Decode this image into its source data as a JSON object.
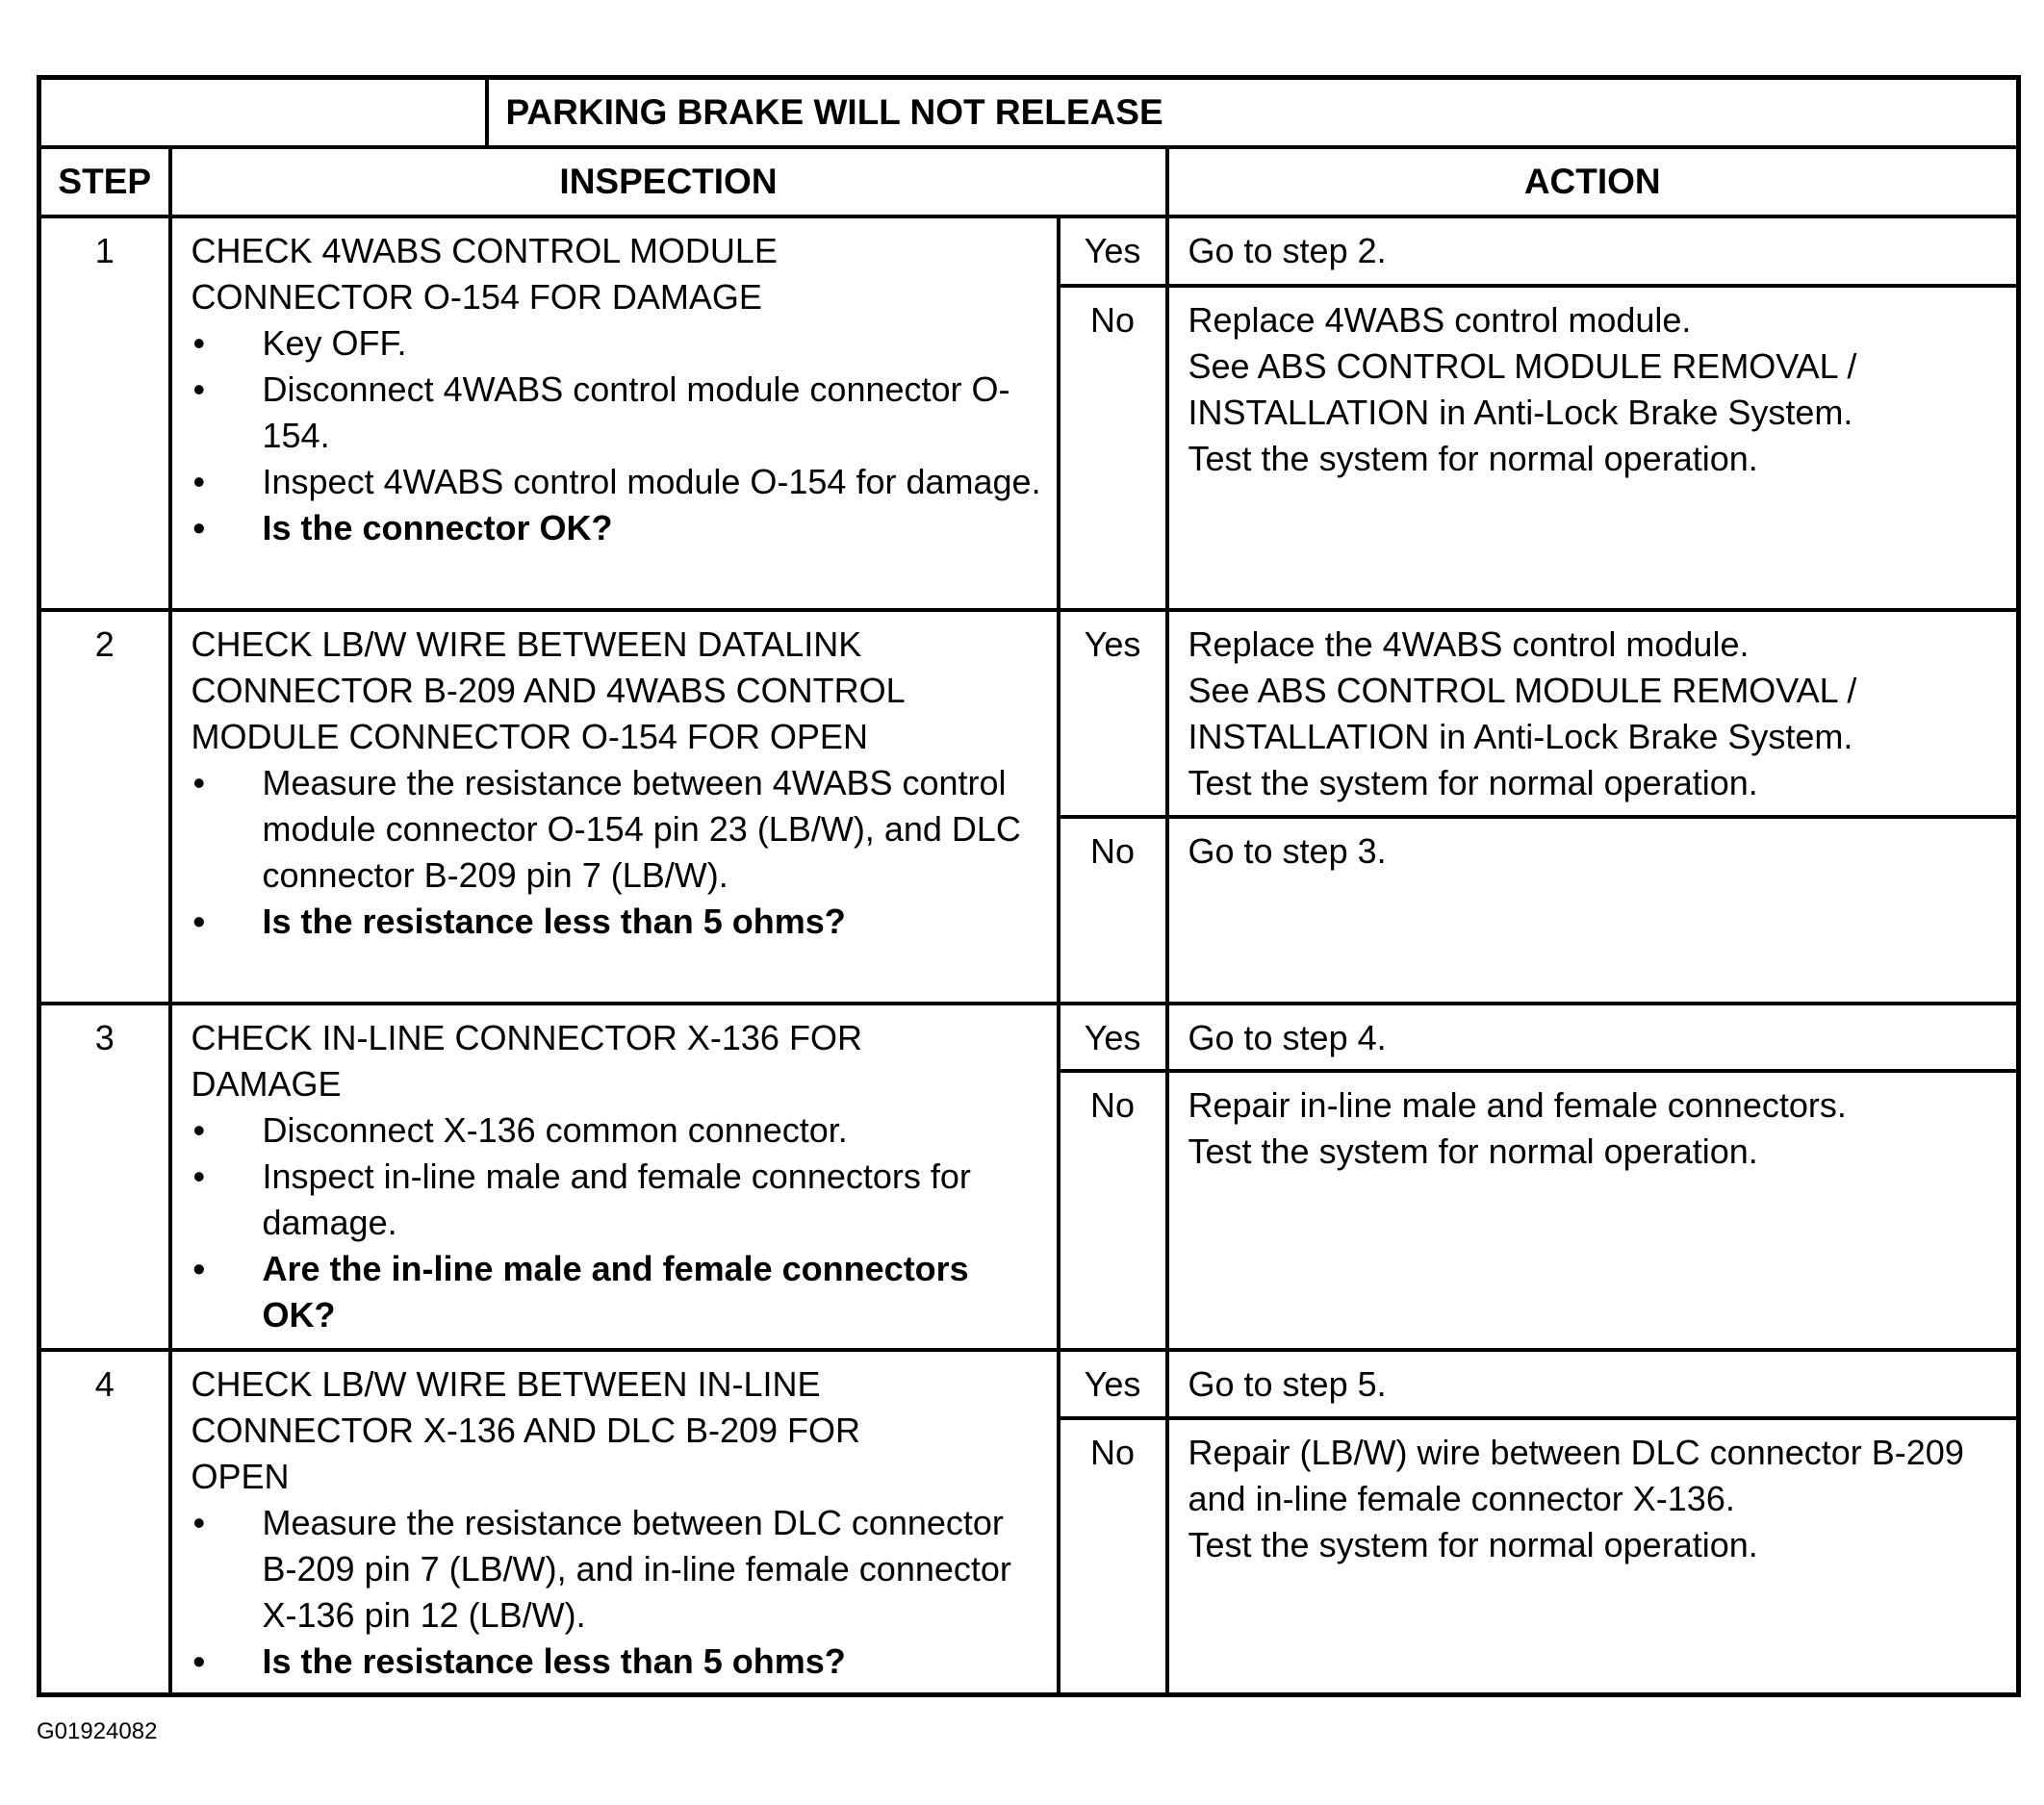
{
  "title": "PARKING BRAKE WILL NOT RELEASE",
  "headers": {
    "step": "STEP",
    "inspection": "INSPECTION",
    "action": "ACTION"
  },
  "steps": [
    {
      "number": "1",
      "heading": [
        "CHECK 4WABS CONTROL MODULE",
        "CONNECTOR O-154 FOR DAMAGE"
      ],
      "bullets": [
        {
          "text": "Key OFF.",
          "bold": false
        },
        {
          "text": "Disconnect 4WABS control module connector O-154.",
          "bold": false
        },
        {
          "text": "Inspect 4WABS control module O-154 for damage.",
          "bold": false
        },
        {
          "text": "Is the connector OK?",
          "bold": true
        }
      ],
      "yes": {
        "label": "Yes",
        "action": [
          "Go to step 2."
        ]
      },
      "no": {
        "label": "No",
        "action": [
          "Replace 4WABS control module.",
          "See ABS CONTROL MODULE REMOVAL / INSTALLATION in Anti-Lock Brake System.",
          "Test the system for normal operation."
        ]
      }
    },
    {
      "number": "2",
      "heading": [
        "CHECK LB/W WIRE BETWEEN DATALINK",
        "CONNECTOR B-209 AND 4WABS CONTROL",
        "MODULE CONNECTOR O-154 FOR OPEN"
      ],
      "bullets": [
        {
          "text": "Measure the resistance between 4WABS control module connector O-154 pin 23 (LB/W), and DLC connector B-209 pin 7 (LB/W).",
          "bold": false
        },
        {
          "text": "Is the resistance less than 5 ohms?",
          "bold": true
        }
      ],
      "yes": {
        "label": "Yes",
        "action": [
          "Replace the 4WABS control module.",
          "See ABS CONTROL MODULE REMOVAL / INSTALLATION in Anti-Lock Brake System.",
          "Test the system for normal operation."
        ]
      },
      "no": {
        "label": "No",
        "action": [
          "Go to step 3."
        ]
      }
    },
    {
      "number": "3",
      "heading": [
        "CHECK IN-LINE CONNECTOR X-136 FOR",
        "DAMAGE"
      ],
      "bullets": [
        {
          "text": "Disconnect X-136 common connector.",
          "bold": false
        },
        {
          "text": "Inspect in-line male and female connectors for damage.",
          "bold": false
        },
        {
          "text": "Are the in-line male and female connectors OK?",
          "bold": true
        }
      ],
      "yes": {
        "label": "Yes",
        "action": [
          "Go to step 4."
        ]
      },
      "no": {
        "label": "No",
        "action": [
          "Repair in-line male and female connectors.",
          "Test the system for normal operation."
        ]
      }
    },
    {
      "number": "4",
      "heading": [
        "CHECK LB/W WIRE BETWEEN IN-LINE",
        "CONNECTOR X-136 AND DLC B-209 FOR",
        "OPEN"
      ],
      "bullets": [
        {
          "text": "Measure the resistance between DLC connector B-209 pin 7 (LB/W), and in-line female connector X-136 pin 12 (LB/W).",
          "bold": false
        },
        {
          "text": "Is the resistance less than 5 ohms?",
          "bold": true
        }
      ],
      "yes": {
        "label": "Yes",
        "action": [
          "Go to step 5."
        ]
      },
      "no": {
        "label": "No",
        "action": [
          "Repair (LB/W) wire between DLC connector B-209 and in-line female connector X-136.",
          "Test the system for normal operation."
        ]
      }
    }
  ],
  "footer": {
    "figure_id": "G01924082"
  }
}
